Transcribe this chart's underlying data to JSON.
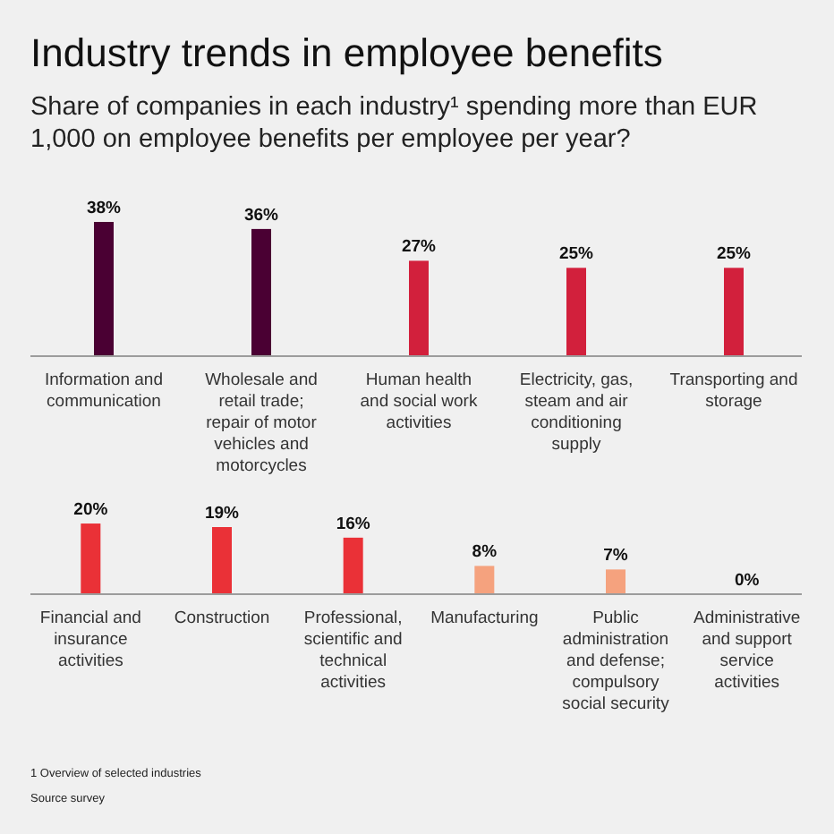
{
  "chart_data": [
    {
      "type": "bar",
      "title": "Industry trends in employee benefits",
      "subtitle": "Share of companies in each industry¹ spending more than EUR 1,000 on employee benefits per employee per year?",
      "categories": [
        "Information and communication",
        "Wholesale and retail trade; repair of motor vehicles and motorcycles",
        "Human health and social work activities",
        "Electricity, gas, steam and air conditioning supply",
        "Transporting and storage"
      ],
      "values": [
        38,
        36,
        27,
        25,
        25
      ],
      "colors": [
        "#4a0033",
        "#4a0033",
        "#d2203c",
        "#d2203c",
        "#d2203c"
      ],
      "value_labels": [
        "38%",
        "36%",
        "27%",
        "25%",
        "25%"
      ]
    },
    {
      "type": "bar",
      "categories": [
        "Financial and insurance activities",
        "Construction",
        "Professional, scientific and technical activities",
        "Manufacturing",
        "Public administration and defense; compulsory social security",
        "Administrative and support service activities"
      ],
      "values": [
        20,
        19,
        16,
        8,
        7,
        0
      ],
      "colors": [
        "#ea3137",
        "#ea3137",
        "#ea3137",
        "#f5a27e",
        "#f5a27e",
        "#f5a27e"
      ],
      "value_labels": [
        "20%",
        "19%",
        "16%",
        "8%",
        "7%",
        "0%"
      ],
      "annotations": [
        "1 Overview of selected industries",
        "Source survey"
      ]
    }
  ]
}
